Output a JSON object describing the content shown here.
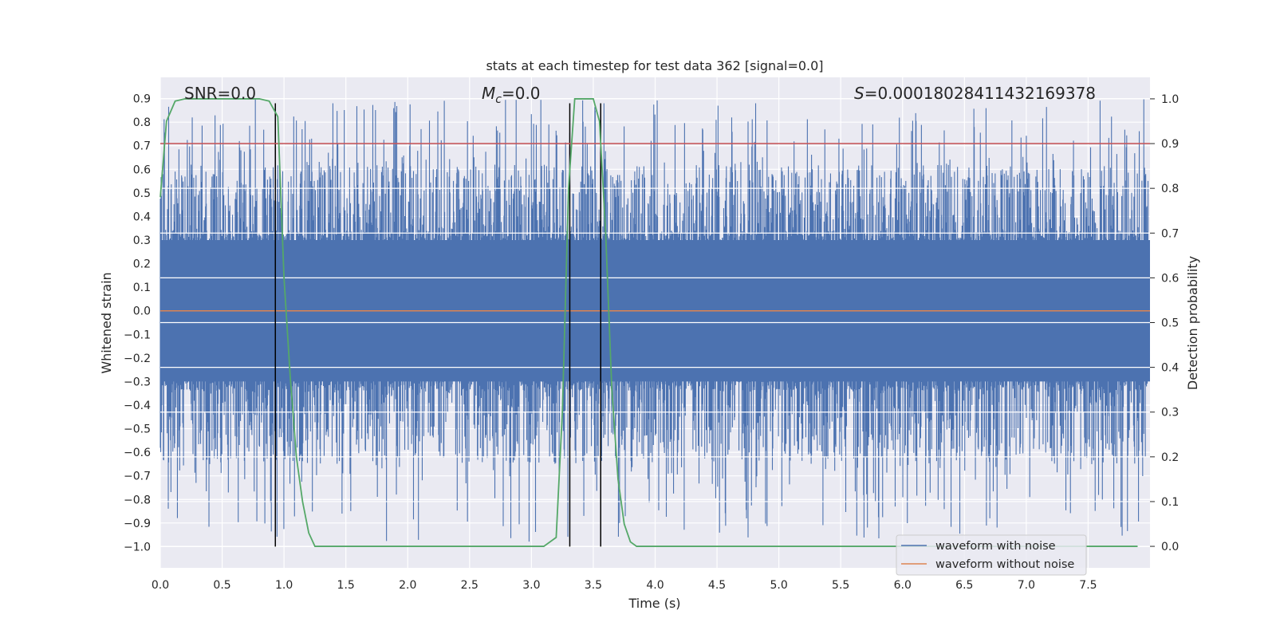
{
  "chart_data": {
    "type": "line",
    "title": "stats at each timestep for test data 362 [signal=0.0]",
    "xlabel": "Time (s)",
    "ylabel": "Whitened strain",
    "y2label": "Detection probability",
    "xlim": [
      0.0,
      8.0
    ],
    "ylim": [
      -1.09,
      0.99
    ],
    "y2lim": [
      -0.048,
      1.048
    ],
    "xticks": [
      0.0,
      0.5,
      1.0,
      1.5,
      2.0,
      2.5,
      3.0,
      3.5,
      4.0,
      4.5,
      5.0,
      5.5,
      6.0,
      6.5,
      7.0,
      7.5
    ],
    "xtick_labels": [
      "0.0",
      "0.5",
      "1.0",
      "1.5",
      "2.0",
      "2.5",
      "3.0",
      "3.5",
      "4.0",
      "4.5",
      "5.0",
      "5.5",
      "6.0",
      "6.5",
      "7.0",
      "7.5"
    ],
    "yticks": [
      0.9,
      0.8,
      0.7,
      0.6,
      0.5,
      0.4,
      0.3,
      0.2,
      0.1,
      0.0,
      -0.1,
      -0.2,
      -0.3,
      -0.4,
      -0.5,
      -0.6,
      -0.7,
      -0.8,
      -0.9,
      -1.0
    ],
    "ytick_labels": [
      "0.9",
      "0.8",
      "0.7",
      "0.6",
      "0.5",
      "0.4",
      "0.3",
      "0.2",
      "0.1",
      "0.0",
      "−0.1",
      "−0.2",
      "−0.3",
      "−0.4",
      "−0.5",
      "−0.6",
      "−0.7",
      "−0.8",
      "−0.9",
      "−1.0"
    ],
    "y2ticks": [
      1.0,
      0.9,
      0.8,
      0.7,
      0.6,
      0.5,
      0.4,
      0.3,
      0.2,
      0.1,
      0.0
    ],
    "y2tick_labels": [
      "1.0",
      "0.9",
      "0.8",
      "0.7",
      "0.6",
      "0.5",
      "0.4",
      "0.3",
      "0.2",
      "0.1",
      "0.0"
    ],
    "grid": true,
    "legend_position": "lower-right",
    "annotations": {
      "snr": "SNR=0.0",
      "mc_symbol": "M",
      "mc_sub": "c",
      "mc_value": "=0.0",
      "s_symbol": "S",
      "s_value": "=0.00018028411432169378"
    },
    "series": [
      {
        "name": "waveform with noise",
        "color": "#4c72b0",
        "description": "dense noise trace",
        "core_range": [
          -0.3,
          0.3
        ],
        "peak_range": [
          -1.0,
          0.9
        ]
      },
      {
        "name": "waveform without noise",
        "color": "#dd8452",
        "x": [
          0.0,
          8.0
        ],
        "y": [
          0.0,
          0.0
        ]
      }
    ],
    "detection_probability": {
      "name": "detection probability",
      "color": "#55a868",
      "axis": "right",
      "x": [
        0.0,
        0.05,
        0.12,
        0.2,
        0.3,
        0.5,
        0.7,
        0.8,
        0.88,
        0.95,
        1.0,
        1.05,
        1.1,
        1.15,
        1.2,
        1.25,
        1.35,
        1.5,
        2.0,
        2.5,
        3.0,
        3.1,
        3.2,
        3.25,
        3.3,
        3.35,
        3.4,
        3.45,
        3.5,
        3.55,
        3.6,
        3.65,
        3.7,
        3.75,
        3.8,
        3.85,
        3.9,
        4.0,
        7.5,
        7.9
      ],
      "y": [
        0.78,
        0.95,
        0.995,
        1.0,
        1.0,
        1.0,
        1.0,
        1.0,
        0.995,
        0.96,
        0.6,
        0.38,
        0.2,
        0.1,
        0.03,
        0.0,
        0.0,
        0.0,
        0.0,
        0.0,
        0.0,
        0.0,
        0.02,
        0.3,
        0.8,
        1.0,
        1.0,
        1.0,
        1.0,
        0.95,
        0.7,
        0.35,
        0.15,
        0.05,
        0.01,
        0.0,
        0.0,
        0.0,
        0.0,
        0.0
      ]
    },
    "threshold": {
      "value": 0.9,
      "axis": "right",
      "color": "#c44e52"
    },
    "vertical_markers": {
      "x": [
        0.93,
        3.31,
        3.56
      ],
      "y_range": [
        -1.0,
        0.88
      ],
      "color": "#000000"
    }
  }
}
